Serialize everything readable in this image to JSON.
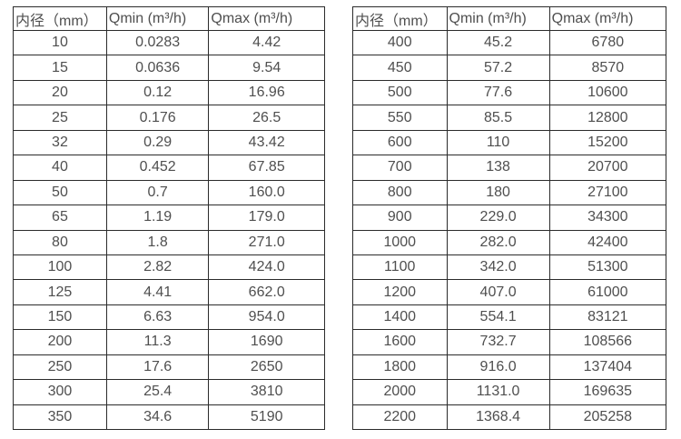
{
  "page": {
    "background_color": "#ffffff",
    "text_color": "#4f4f4f",
    "border_color": "#2b2b2b"
  },
  "tables": [
    {
      "title": "flow-rates-small-diameters",
      "headers": [
        "内径（mm）",
        "Qmin (m³/h)",
        "Qmax (m³/h)"
      ],
      "rows": [
        [
          "10",
          "0.0283",
          "4.42"
        ],
        [
          "15",
          "0.0636",
          "9.54"
        ],
        [
          "20",
          "0.12",
          "16.96"
        ],
        [
          "25",
          "0.176",
          "26.5"
        ],
        [
          "32",
          "0.29",
          "43.42"
        ],
        [
          "40",
          "0.452",
          "67.85"
        ],
        [
          "50",
          "0.7",
          "160.0"
        ],
        [
          "65",
          "1.19",
          "179.0"
        ],
        [
          "80",
          "1.8",
          "271.0"
        ],
        [
          "100",
          "2.82",
          "424.0"
        ],
        [
          "125",
          "4.41",
          "662.0"
        ],
        [
          "150",
          "6.63",
          "954.0"
        ],
        [
          "200",
          "11.3",
          "1690"
        ],
        [
          "250",
          "17.6",
          "2650"
        ],
        [
          "300",
          "25.4",
          "3810"
        ],
        [
          "350",
          "34.6",
          "5190"
        ]
      ]
    },
    {
      "title": "flow-rates-large-diameters",
      "headers": [
        "内径（mm）",
        "Qmin (m³/h)",
        "Qmax (m³/h)"
      ],
      "rows": [
        [
          "400",
          "45.2",
          "6780"
        ],
        [
          "450",
          "57.2",
          "8570"
        ],
        [
          "500",
          "77.6",
          "10600"
        ],
        [
          "550",
          "85.5",
          "12800"
        ],
        [
          "600",
          "110",
          "15200"
        ],
        [
          "700",
          "138",
          "20700"
        ],
        [
          "800",
          "180",
          "27100"
        ],
        [
          "900",
          "229.0",
          "34300"
        ],
        [
          "1000",
          "282.0",
          "42400"
        ],
        [
          "1100",
          "342.0",
          "51300"
        ],
        [
          "1200",
          "407.0",
          "61000"
        ],
        [
          "1400",
          "554.1",
          "83121"
        ],
        [
          "1600",
          "732.7",
          "108566"
        ],
        [
          "1800",
          "916.0",
          "137404"
        ],
        [
          "2000",
          "1131.0",
          "169635"
        ],
        [
          "2200",
          "1368.4",
          "205258"
        ]
      ]
    }
  ]
}
